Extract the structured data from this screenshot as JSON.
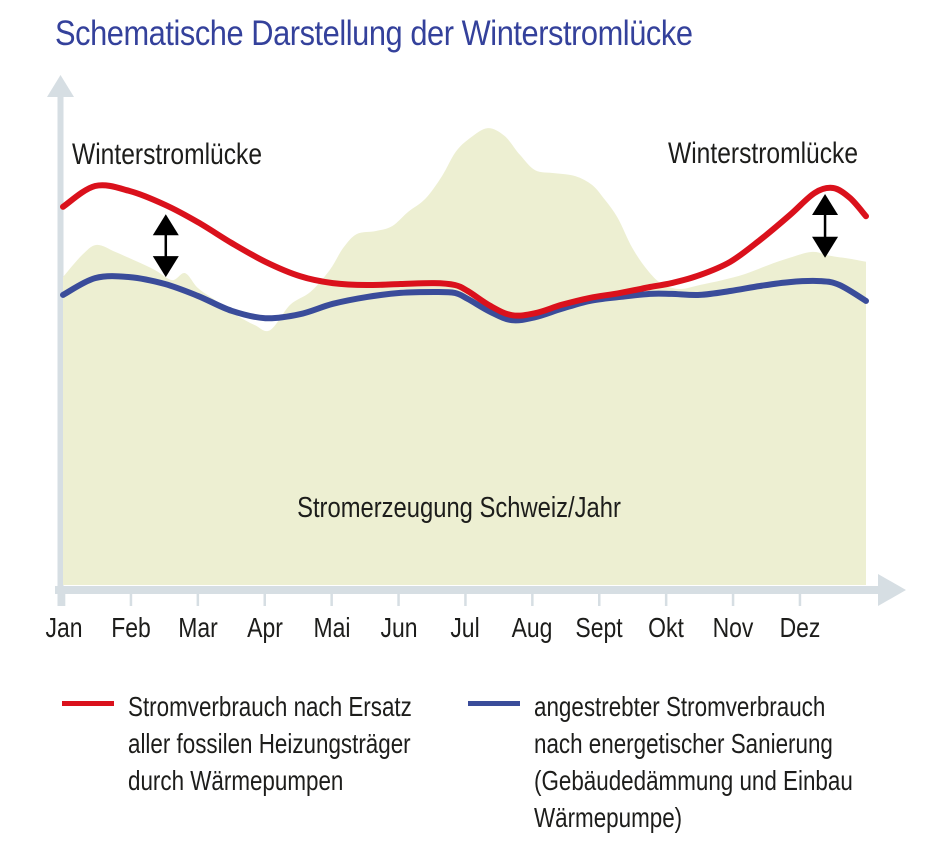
{
  "title": "Schematische Darstellung der Winterstromlücke",
  "colors": {
    "title_blue": "#34419b",
    "red_line": "#da111c",
    "blue_line": "#3a4c9a",
    "area_fill": "#edefd2",
    "axis_gray": "#d6dee3",
    "text_black": "#1d1d1b",
    "gap_arrow_black": "#000000"
  },
  "chart_data": {
    "type": "area",
    "title": "Schematische Darstellung der Winterstromlücke",
    "subtitle": "",
    "categories": [
      "Jan",
      "Feb",
      "Mar",
      "Apr",
      "Mai",
      "Jun",
      "Jul",
      "Aug",
      "Sept",
      "Okt",
      "Nov",
      "Dez"
    ],
    "x_axis": {
      "unit": "months (Jan–Dez), normalized 0–1 across the year",
      "numeric_ticks": false,
      "arrow": true
    },
    "y_axis": {
      "label": "",
      "numeric_ticks": false,
      "arrow": true,
      "scale": "schematic relative level 0–100 (no values shown)"
    },
    "grid": false,
    "legend_position": "below chart, two columns",
    "annotations": {
      "left_gap_label": "Winterstromlücke",
      "right_gap_label": "Winterstromlücke",
      "area_label": "Stromerzeugung Schweiz/Jahr"
    },
    "gap_arrows": [
      {
        "t": 0.128,
        "v_top": 74.9,
        "v_bottom": 62.2
      },
      {
        "t": 0.949,
        "v_top": 79.0,
        "v_bottom": 66.1
      }
    ],
    "series": [
      {
        "name": "Stromerzeugung Schweiz/Jahr",
        "type": "area",
        "color": "#edefd2",
        "points": [
          [
            0.0,
            62.2
          ],
          [
            0.024,
            66.7
          ],
          [
            0.042,
            68.7
          ],
          [
            0.065,
            67.3
          ],
          [
            0.09,
            65.5
          ],
          [
            0.115,
            63.6
          ],
          [
            0.136,
            61.6
          ],
          [
            0.152,
            63.0
          ],
          [
            0.168,
            60.0
          ],
          [
            0.189,
            57.6
          ],
          [
            0.214,
            54.7
          ],
          [
            0.239,
            52.5
          ],
          [
            0.258,
            51.5
          ],
          [
            0.283,
            56.6
          ],
          [
            0.308,
            59.2
          ],
          [
            0.332,
            63.6
          ],
          [
            0.349,
            68.1
          ],
          [
            0.366,
            70.9
          ],
          [
            0.389,
            71.5
          ],
          [
            0.41,
            72.5
          ],
          [
            0.43,
            75.4
          ],
          [
            0.451,
            78.0
          ],
          [
            0.472,
            82.6
          ],
          [
            0.489,
            87.5
          ],
          [
            0.507,
            90.3
          ],
          [
            0.529,
            92.3
          ],
          [
            0.55,
            90.7
          ],
          [
            0.569,
            86.9
          ],
          [
            0.588,
            83.8
          ],
          [
            0.613,
            83.2
          ],
          [
            0.638,
            82.6
          ],
          [
            0.659,
            80.8
          ],
          [
            0.675,
            77.8
          ],
          [
            0.691,
            74.1
          ],
          [
            0.709,
            68.1
          ],
          [
            0.728,
            63.6
          ],
          [
            0.746,
            60.8
          ],
          [
            0.768,
            59.8
          ],
          [
            0.793,
            60.6
          ],
          [
            0.821,
            61.6
          ],
          [
            0.849,
            62.8
          ],
          [
            0.878,
            64.6
          ],
          [
            0.905,
            66.1
          ],
          [
            0.933,
            67.3
          ],
          [
            0.955,
            66.5
          ],
          [
            0.98,
            65.9
          ],
          [
            1.0,
            65.3
          ]
        ]
      },
      {
        "name": "Stromverbrauch nach Ersatz aller fossilen Heizungsträger durch Wärmepumpen",
        "type": "line",
        "color": "#da111c",
        "points": [
          [
            0.0,
            76.4
          ],
          [
            0.04,
            80.6
          ],
          [
            0.083,
            79.6
          ],
          [
            0.127,
            76.8
          ],
          [
            0.168,
            73.3
          ],
          [
            0.21,
            69.1
          ],
          [
            0.252,
            65.3
          ],
          [
            0.295,
            62.4
          ],
          [
            0.336,
            61.0
          ],
          [
            0.379,
            60.6
          ],
          [
            0.42,
            60.8
          ],
          [
            0.462,
            61.0
          ],
          [
            0.488,
            60.6
          ],
          [
            0.504,
            59.4
          ],
          [
            0.532,
            56.4
          ],
          [
            0.559,
            54.5
          ],
          [
            0.588,
            54.9
          ],
          [
            0.621,
            56.6
          ],
          [
            0.656,
            58.0
          ],
          [
            0.694,
            59.0
          ],
          [
            0.731,
            60.2
          ],
          [
            0.758,
            61.0
          ],
          [
            0.793,
            62.6
          ],
          [
            0.831,
            65.3
          ],
          [
            0.868,
            69.7
          ],
          [
            0.905,
            74.7
          ],
          [
            0.936,
            79.2
          ],
          [
            0.959,
            80.2
          ],
          [
            0.98,
            78.2
          ],
          [
            1.0,
            74.5
          ]
        ]
      },
      {
        "name": "angestrebter Stromverbrauch nach energetischer Sanierung (Gebäudedämmung und Einbau Wärmepumpe)",
        "type": "line",
        "color": "#3a4c9a",
        "points": [
          [
            0.0,
            58.6
          ],
          [
            0.04,
            62.0
          ],
          [
            0.083,
            62.2
          ],
          [
            0.127,
            60.8
          ],
          [
            0.168,
            58.4
          ],
          [
            0.21,
            55.4
          ],
          [
            0.252,
            53.9
          ],
          [
            0.295,
            54.7
          ],
          [
            0.336,
            56.8
          ],
          [
            0.379,
            58.2
          ],
          [
            0.42,
            59.0
          ],
          [
            0.462,
            59.2
          ],
          [
            0.488,
            59.0
          ],
          [
            0.504,
            57.8
          ],
          [
            0.532,
            55.2
          ],
          [
            0.559,
            53.5
          ],
          [
            0.588,
            54.1
          ],
          [
            0.621,
            55.8
          ],
          [
            0.656,
            57.4
          ],
          [
            0.694,
            58.2
          ],
          [
            0.731,
            58.8
          ],
          [
            0.758,
            58.8
          ],
          [
            0.793,
            58.6
          ],
          [
            0.831,
            59.4
          ],
          [
            0.868,
            60.4
          ],
          [
            0.905,
            61.2
          ],
          [
            0.943,
            61.4
          ],
          [
            0.967,
            60.6
          ],
          [
            1.0,
            57.4
          ]
        ]
      }
    ]
  },
  "legend": [
    {
      "color": "#da111c",
      "label": "Stromverbrauch nach Ersatz\naller fossilen Heizungsträger\ndurch Wärmepumpen"
    },
    {
      "color": "#3a4c9a",
      "label": "angestrebter Stromverbrauch\nnach energetischer Sanierung\n(Gebäudedämmung und Einbau\nWärmepumpe)"
    }
  ]
}
